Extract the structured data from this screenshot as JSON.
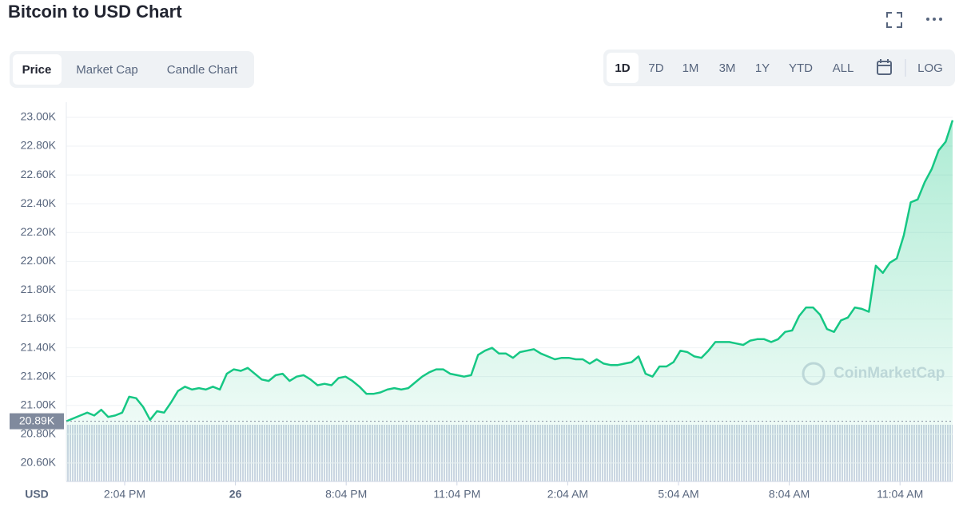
{
  "chart_data": {
    "type": "line",
    "title": "Bitcoin to USD Chart",
    "tabs": [
      "Price",
      "Market Cap",
      "Candle Chart"
    ],
    "ranges": [
      "1D",
      "7D",
      "1M",
      "3M",
      "1Y",
      "YTD",
      "ALL"
    ],
    "scale_toggle": "LOG",
    "y_label": "USD",
    "watermark": "CoinMarketCap",
    "reference": {
      "value": 20890,
      "label": "20.89K"
    },
    "color": "#16c784",
    "grid": true,
    "ylim": [
      20472,
      23105
    ],
    "yticks": [
      {
        "value": 20600,
        "label": "20.60K"
      },
      {
        "value": 20800,
        "label": "20.80K"
      },
      {
        "value": 21000,
        "label": "21.00K"
      },
      {
        "value": 21200,
        "label": "21.20K"
      },
      {
        "value": 21400,
        "label": "21.40K"
      },
      {
        "value": 21600,
        "label": "21.60K"
      },
      {
        "value": 21800,
        "label": "21.80K"
      },
      {
        "value": 22000,
        "label": "22.00K"
      },
      {
        "value": 22200,
        "label": "22.20K"
      },
      {
        "value": 22400,
        "label": "22.40K"
      },
      {
        "value": 22600,
        "label": "22.60K"
      },
      {
        "value": 22800,
        "label": "22.80K"
      },
      {
        "value": 23000,
        "label": "23.00K"
      }
    ],
    "x_tick_labels": [
      "2:04 PM",
      "26",
      "8:04 PM",
      "11:04 PM",
      "2:04 AM",
      "5:04 AM",
      "8:04 AM",
      "11:04 AM"
    ],
    "values": [
      20890,
      20910,
      20930,
      20950,
      20930,
      20970,
      20920,
      20930,
      20950,
      21060,
      21050,
      20990,
      20900,
      20960,
      20950,
      21020,
      21100,
      21130,
      21110,
      21120,
      21110,
      21130,
      21110,
      21220,
      21250,
      21240,
      21260,
      21220,
      21180,
      21170,
      21210,
      21220,
      21170,
      21200,
      21210,
      21180,
      21140,
      21150,
      21140,
      21190,
      21200,
      21170,
      21130,
      21080,
      21080,
      21090,
      21110,
      21120,
      21110,
      21120,
      21160,
      21200,
      21230,
      21250,
      21250,
      21220,
      21210,
      21200,
      21210,
      21350,
      21380,
      21400,
      21360,
      21360,
      21330,
      21370,
      21380,
      21390,
      21360,
      21340,
      21320,
      21330,
      21330,
      21320,
      21320,
      21290,
      21320,
      21290,
      21280,
      21280,
      21290,
      21300,
      21340,
      21220,
      21200,
      21270,
      21270,
      21300,
      21380,
      21370,
      21340,
      21330,
      21380,
      21440,
      21440,
      21440,
      21430,
      21420,
      21450,
      21460,
      21460,
      21440,
      21460,
      21510,
      21520,
      21620,
      21680,
      21680,
      21630,
      21530,
      21510,
      21590,
      21610,
      21680,
      21670,
      21650,
      21970,
      21920,
      21990,
      22020,
      22180,
      22410,
      22430,
      22550,
      22640,
      22770,
      22830,
      22980
    ]
  }
}
